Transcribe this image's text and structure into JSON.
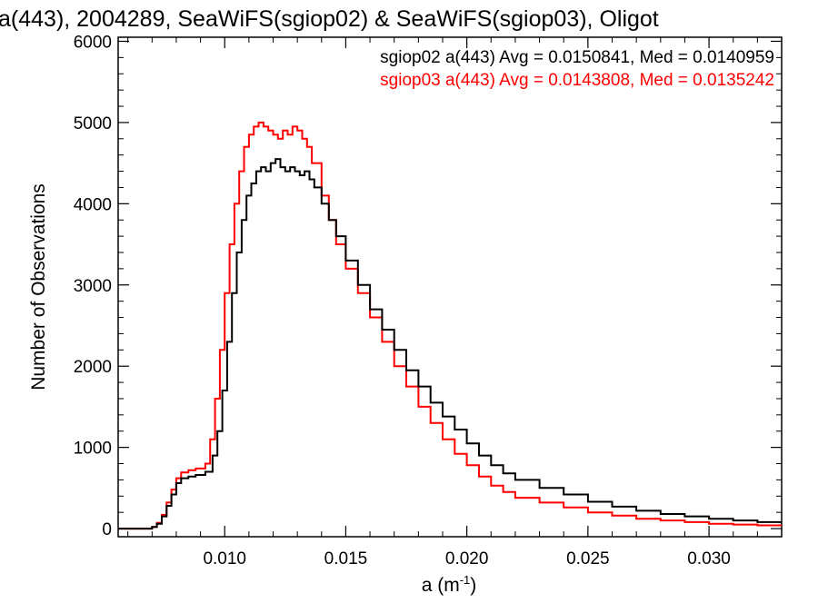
{
  "chart_data": {
    "type": "line",
    "title": "a(443), 2004289, SeaWiFS(sgiop02) & SeaWiFS(sgiop03), Oligot",
    "xlabel": "a (m",
    "xlabel_sup": "-1",
    "xlabel_close": ")",
    "ylabel": "Number of Observations",
    "xlim": [
      0.0056,
      0.033
    ],
    "ylim": [
      -100,
      6050
    ],
    "x_ticks": [
      0.01,
      0.015,
      0.02,
      0.025,
      0.03
    ],
    "x_tick_labels": [
      "0.010",
      "0.015",
      "0.020",
      "0.025",
      "0.030"
    ],
    "y_ticks": [
      0,
      1000,
      2000,
      3000,
      4000,
      5000,
      6000
    ],
    "y_tick_labels": [
      "0",
      "1000",
      "2000",
      "3000",
      "4000",
      "5000",
      "6000"
    ],
    "grid": false,
    "legend_position": "top-right",
    "series": [
      {
        "name": "sgiop02 a(443) Avg = 0.0150841, Med = 0.0140959",
        "color": "#000000",
        "x": [
          0.0056,
          0.0065,
          0.007,
          0.0072,
          0.0074,
          0.0076,
          0.0078,
          0.008,
          0.0082,
          0.0085,
          0.0088,
          0.0092,
          0.0095,
          0.0097,
          0.0099,
          0.0101,
          0.0103,
          0.0105,
          0.0107,
          0.0109,
          0.0111,
          0.0113,
          0.0115,
          0.0117,
          0.0119,
          0.0121,
          0.0123,
          0.0125,
          0.0127,
          0.0129,
          0.0131,
          0.0133,
          0.0135,
          0.0137,
          0.014,
          0.0143,
          0.0146,
          0.015,
          0.0155,
          0.016,
          0.0165,
          0.017,
          0.0175,
          0.018,
          0.0185,
          0.019,
          0.0195,
          0.02,
          0.0205,
          0.021,
          0.0215,
          0.022,
          0.023,
          0.024,
          0.025,
          0.026,
          0.027,
          0.028,
          0.029,
          0.03,
          0.031,
          0.032,
          0.033
        ],
        "y": [
          0,
          0,
          20,
          60,
          150,
          280,
          420,
          560,
          620,
          640,
          660,
          700,
          900,
          1200,
          1700,
          2300,
          2900,
          3400,
          3800,
          4100,
          4250,
          4400,
          4450,
          4400,
          4500,
          4550,
          4450,
          4400,
          4450,
          4400,
          4350,
          4400,
          4300,
          4200,
          4000,
          3800,
          3600,
          3300,
          3000,
          2700,
          2450,
          2200,
          1950,
          1750,
          1550,
          1380,
          1220,
          1050,
          900,
          780,
          680,
          600,
          500,
          420,
          330,
          270,
          220,
          180,
          150,
          120,
          100,
          80,
          60
        ]
      },
      {
        "name": "sgiop03 a(443) Avg = 0.0143808, Med = 0.0135242",
        "color": "#ff0000",
        "x": [
          0.0056,
          0.0065,
          0.007,
          0.0072,
          0.0074,
          0.0076,
          0.0078,
          0.008,
          0.0082,
          0.0085,
          0.0088,
          0.0092,
          0.0094,
          0.0096,
          0.0098,
          0.01,
          0.0102,
          0.0104,
          0.0106,
          0.0108,
          0.011,
          0.0112,
          0.0114,
          0.0116,
          0.0118,
          0.012,
          0.0122,
          0.0124,
          0.0126,
          0.0128,
          0.013,
          0.0132,
          0.0134,
          0.0136,
          0.014,
          0.0143,
          0.0146,
          0.015,
          0.0155,
          0.016,
          0.0165,
          0.017,
          0.0175,
          0.018,
          0.0185,
          0.019,
          0.0195,
          0.02,
          0.0205,
          0.021,
          0.0215,
          0.022,
          0.023,
          0.024,
          0.025,
          0.026,
          0.027,
          0.028,
          0.029,
          0.03,
          0.031,
          0.032,
          0.033
        ],
        "y": [
          0,
          0,
          20,
          70,
          170,
          320,
          480,
          620,
          690,
          720,
          740,
          800,
          1100,
          1600,
          2200,
          2900,
          3500,
          4000,
          4400,
          4700,
          4850,
          4950,
          5000,
          4950,
          4900,
          4850,
          4800,
          4900,
          4850,
          4950,
          4900,
          4800,
          4700,
          4500,
          4100,
          3800,
          3500,
          3200,
          2900,
          2600,
          2300,
          2000,
          1750,
          1500,
          1300,
          1100,
          920,
          780,
          640,
          530,
          450,
          380,
          320,
          260,
          200,
          160,
          120,
          100,
          80,
          60,
          50,
          40,
          30
        ]
      }
    ]
  }
}
